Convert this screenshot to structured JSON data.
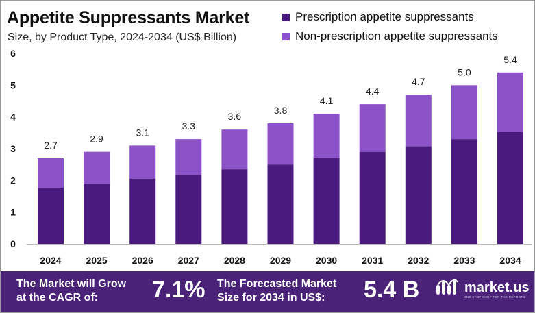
{
  "title": "Appetite Suppressants Market",
  "subtitle": "Size, by Product Type, 2024-2034 (US$ Billion)",
  "colors": {
    "prescription": "#4a1a7e",
    "non_prescription": "#8c52c8",
    "footer": "#4a2277"
  },
  "chart_data": {
    "type": "bar",
    "stacked": true,
    "categories": [
      "2024",
      "2025",
      "2026",
      "2027",
      "2028",
      "2029",
      "2030",
      "2031",
      "2032",
      "2033",
      "2034"
    ],
    "series": [
      {
        "name": "Prescription appetite suppressants",
        "values": [
          1.77,
          1.9,
          2.05,
          2.18,
          2.35,
          2.5,
          2.7,
          2.9,
          3.08,
          3.3,
          3.53
        ]
      },
      {
        "name": "Non-prescription appetite suppressants",
        "values": [
          0.93,
          1.0,
          1.05,
          1.12,
          1.25,
          1.3,
          1.4,
          1.5,
          1.62,
          1.7,
          1.87
        ]
      }
    ],
    "totals": [
      "2.7",
      "2.9",
      "3.1",
      "3.3",
      "3.6",
      "3.8",
      "4.1",
      "4.4",
      "4.7",
      "5.0",
      "5.4"
    ],
    "yticks": [
      0,
      1,
      2,
      3,
      4,
      5,
      6
    ],
    "ylim": [
      0,
      6
    ],
    "legend": "top-right",
    "grid": false
  },
  "footer": {
    "cagr_label_line1": "The Market will Grow",
    "cagr_label_line2": "at the CAGR of:",
    "cagr_value": "7.1%",
    "forecast_label_line1": "The Forecasted Market",
    "forecast_label_line2": "Size for 2034 in US$:",
    "forecast_value": "5.4 B",
    "brand_name": "market.us",
    "brand_tagline": "ONE STOP SHOP FOR THE REPORTS"
  }
}
